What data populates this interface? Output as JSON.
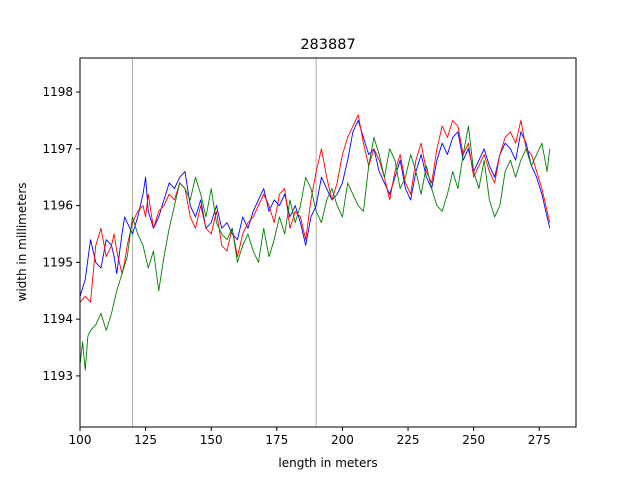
{
  "chart_data": {
    "type": "line",
    "title": "283887",
    "xlabel": "length in meters",
    "ylabel": "width in millimeters",
    "xlim": [
      100,
      289
    ],
    "ylim": [
      1192.1,
      1198.6
    ],
    "xticks": [
      100,
      125,
      150,
      175,
      200,
      225,
      250,
      275
    ],
    "yticks": [
      1193,
      1194,
      1195,
      1196,
      1197,
      1198
    ],
    "vlines": [
      120,
      190
    ],
    "grid": false,
    "legend": "none",
    "series": [
      {
        "color": "#0000ff",
        "x": [
          100,
          102,
          104,
          105,
          106,
          108,
          110,
          112,
          113,
          114,
          116,
          117,
          118,
          120,
          122,
          124,
          125,
          126,
          128,
          130,
          132,
          134,
          136,
          138,
          140,
          142,
          144,
          146,
          148,
          150,
          152,
          154,
          156,
          158,
          160,
          162,
          164,
          166,
          168,
          170,
          172,
          174,
          176,
          178,
          180,
          182,
          184,
          186,
          188,
          190,
          192,
          194,
          196,
          198,
          200,
          202,
          204,
          206,
          208,
          210,
          212,
          214,
          216,
          218,
          220,
          222,
          224,
          226,
          228,
          230,
          232,
          234,
          236,
          238,
          240,
          242,
          244,
          246,
          248,
          250,
          252,
          254,
          256,
          258,
          260,
          262,
          264,
          266,
          268,
          270,
          272,
          274,
          276,
          278,
          279
        ],
        "y": [
          1194.4,
          1194.7,
          1195.4,
          1195.2,
          1195.0,
          1194.9,
          1195.4,
          1195.3,
          1195.1,
          1194.8,
          1195.5,
          1195.8,
          1195.7,
          1195.5,
          1195.8,
          1196.2,
          1196.5,
          1195.9,
          1195.6,
          1195.8,
          1196.1,
          1196.4,
          1196.3,
          1196.5,
          1196.6,
          1196.0,
          1195.8,
          1196.1,
          1195.6,
          1195.7,
          1196.0,
          1195.6,
          1195.7,
          1195.5,
          1195.4,
          1195.8,
          1195.6,
          1195.9,
          1196.1,
          1196.3,
          1195.9,
          1196.1,
          1196.0,
          1196.2,
          1195.8,
          1196.0,
          1195.7,
          1195.3,
          1195.8,
          1196.0,
          1196.5,
          1196.3,
          1196.1,
          1196.2,
          1196.4,
          1196.8,
          1197.3,
          1197.5,
          1197.2,
          1196.9,
          1197.0,
          1196.6,
          1196.4,
          1196.2,
          1196.5,
          1196.8,
          1196.3,
          1196.1,
          1196.6,
          1196.9,
          1196.5,
          1196.3,
          1196.8,
          1197.1,
          1196.9,
          1197.2,
          1197.3,
          1196.8,
          1197.0,
          1196.6,
          1196.8,
          1197.0,
          1196.7,
          1196.5,
          1196.9,
          1197.1,
          1197.0,
          1196.8,
          1197.3,
          1197.1,
          1196.7,
          1196.5,
          1196.2,
          1195.8,
          1195.6
        ]
      },
      {
        "color": "#ff0000",
        "x": [
          100,
          102,
          104,
          105,
          106,
          108,
          110,
          112,
          113,
          114,
          116,
          117,
          118,
          120,
          122,
          124,
          125,
          126,
          128,
          130,
          132,
          134,
          136,
          138,
          140,
          142,
          144,
          146,
          148,
          150,
          152,
          154,
          156,
          158,
          160,
          162,
          164,
          166,
          168,
          170,
          172,
          174,
          176,
          178,
          180,
          182,
          184,
          186,
          188,
          190,
          192,
          194,
          196,
          198,
          200,
          202,
          204,
          206,
          208,
          210,
          212,
          214,
          216,
          218,
          220,
          222,
          224,
          226,
          228,
          230,
          232,
          234,
          236,
          238,
          240,
          242,
          244,
          246,
          248,
          250,
          252,
          254,
          256,
          258,
          260,
          262,
          264,
          266,
          268,
          270,
          272,
          274,
          276,
          278,
          279
        ],
        "y": [
          1194.3,
          1194.4,
          1194.3,
          1194.8,
          1195.3,
          1195.6,
          1195.1,
          1195.3,
          1195.5,
          1195.2,
          1194.8,
          1195.0,
          1195.3,
          1195.7,
          1195.9,
          1196.0,
          1195.8,
          1196.2,
          1195.6,
          1195.9,
          1196.0,
          1196.2,
          1196.1,
          1196.4,
          1196.3,
          1195.8,
          1195.6,
          1196.0,
          1195.6,
          1195.5,
          1195.9,
          1195.3,
          1195.2,
          1195.6,
          1195.1,
          1195.5,
          1195.7,
          1195.8,
          1196.0,
          1196.2,
          1196.0,
          1195.7,
          1196.2,
          1196.3,
          1195.6,
          1195.9,
          1195.8,
          1195.4,
          1196.1,
          1196.6,
          1197.0,
          1196.5,
          1196.1,
          1196.4,
          1196.9,
          1197.2,
          1197.4,
          1197.6,
          1197.1,
          1196.7,
          1197.0,
          1196.8,
          1196.5,
          1196.1,
          1196.6,
          1196.9,
          1196.4,
          1196.2,
          1196.8,
          1197.1,
          1196.6,
          1196.4,
          1197.0,
          1197.4,
          1197.2,
          1197.5,
          1197.4,
          1196.9,
          1197.1,
          1196.5,
          1196.7,
          1196.9,
          1196.6,
          1196.4,
          1196.9,
          1197.2,
          1197.3,
          1197.1,
          1197.5,
          1197.0,
          1196.9,
          1196.6,
          1196.3,
          1195.9,
          1195.7
        ]
      },
      {
        "color": "#008000",
        "x": [
          100,
          101,
          102,
          103,
          104,
          106,
          108,
          110,
          112,
          114,
          116,
          118,
          120,
          122,
          124,
          126,
          128,
          130,
          132,
          134,
          136,
          138,
          140,
          142,
          144,
          146,
          148,
          150,
          152,
          154,
          156,
          158,
          160,
          162,
          164,
          166,
          168,
          170,
          172,
          174,
          176,
          178,
          180,
          182,
          184,
          186,
          188,
          190,
          192,
          194,
          196,
          198,
          200,
          202,
          204,
          206,
          208,
          210,
          212,
          214,
          216,
          218,
          220,
          222,
          224,
          226,
          228,
          230,
          232,
          234,
          236,
          238,
          240,
          242,
          244,
          246,
          248,
          250,
          252,
          254,
          256,
          258,
          260,
          262,
          264,
          266,
          268,
          270,
          272,
          274,
          276,
          278,
          279
        ],
        "y": [
          1193.2,
          1193.6,
          1193.1,
          1193.7,
          1193.8,
          1193.9,
          1194.1,
          1193.8,
          1194.1,
          1194.5,
          1194.8,
          1195.1,
          1195.8,
          1195.5,
          1195.3,
          1194.9,
          1195.2,
          1194.5,
          1195.1,
          1195.6,
          1196.0,
          1196.4,
          1196.3,
          1196.1,
          1196.5,
          1196.2,
          1195.8,
          1196.3,
          1195.7,
          1195.5,
          1195.4,
          1195.6,
          1195.0,
          1195.3,
          1195.5,
          1195.2,
          1195.0,
          1195.6,
          1195.1,
          1195.4,
          1195.8,
          1195.5,
          1196.1,
          1195.7,
          1196.0,
          1196.5,
          1196.3,
          1195.9,
          1195.7,
          1196.1,
          1196.3,
          1196.0,
          1195.8,
          1196.4,
          1196.2,
          1196.0,
          1195.9,
          1196.7,
          1197.2,
          1196.9,
          1196.5,
          1197.0,
          1196.8,
          1196.3,
          1196.5,
          1196.9,
          1196.6,
          1196.2,
          1196.7,
          1196.3,
          1196.0,
          1195.9,
          1196.2,
          1196.6,
          1196.3,
          1196.9,
          1197.4,
          1196.6,
          1196.3,
          1196.8,
          1196.1,
          1195.8,
          1196.0,
          1196.6,
          1196.8,
          1196.5,
          1196.8,
          1197.0,
          1196.7,
          1196.9,
          1197.1,
          1196.6,
          1197.0
        ]
      }
    ]
  }
}
